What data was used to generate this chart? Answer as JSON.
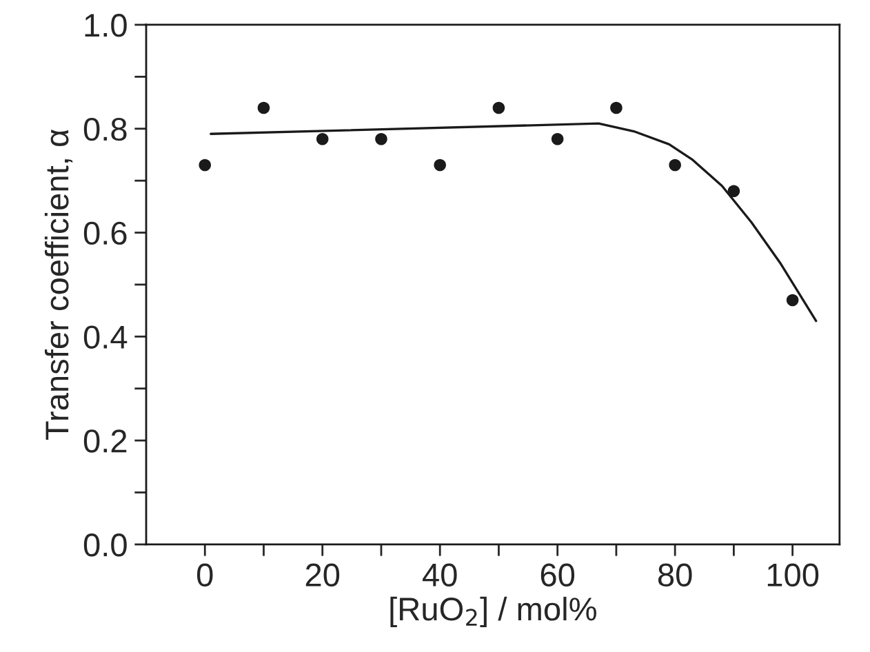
{
  "chart_data": {
    "type": "scatter",
    "xlabel": "[RuO$_{2}$] / mol%",
    "ylabel": "Transfer coefficient, α",
    "x": [
      0,
      10,
      20,
      30,
      40,
      50,
      60,
      70,
      80,
      90,
      100
    ],
    "series": [
      {
        "color": "#1a1a1a",
        "marker": "circle",
        "values": [
          0.73,
          0.84,
          0.78,
          0.78,
          0.73,
          0.84,
          0.78,
          0.84,
          0.73,
          0.68,
          0.47
        ]
      },
      {
        "type": "line",
        "color": "#1a1a1a",
        "marker": "none",
        "x": [
          1,
          67,
          73,
          79,
          83,
          88,
          93,
          98,
          104
        ],
        "values": [
          0.79,
          0.81,
          0.795,
          0.77,
          0.74,
          0.69,
          0.62,
          0.54,
          0.43
        ]
      }
    ],
    "xlim": [
      -10,
      108
    ],
    "ylim": [
      0.0,
      1.0
    ],
    "xticks": [
      0,
      {
        "value": 10,
        "label": null
      },
      20,
      {
        "value": 30,
        "label": null
      },
      40,
      {
        "value": 50,
        "label": null
      },
      60,
      {
        "value": 70,
        "label": null
      },
      80,
      {
        "value": 90,
        "label": null
      },
      100
    ],
    "yticks": [
      {
        "value": 0,
        "label": "0.0"
      },
      {
        "value": 0.1,
        "label": null
      },
      {
        "value": 0.2,
        "label": "0.2"
      },
      {
        "value": 0.3,
        "label": null
      },
      {
        "value": 0.4,
        "label": "0.4"
      },
      {
        "value": 0.5,
        "label": null
      },
      {
        "value": 0.6,
        "label": "0.6"
      },
      {
        "value": 0.7,
        "label": null
      },
      {
        "value": 0.8,
        "label": "0.8"
      },
      {
        "value": 0.9,
        "label": null
      },
      {
        "value": 1.0,
        "label": "1.0"
      }
    ],
    "grid": false,
    "legend": false
  }
}
